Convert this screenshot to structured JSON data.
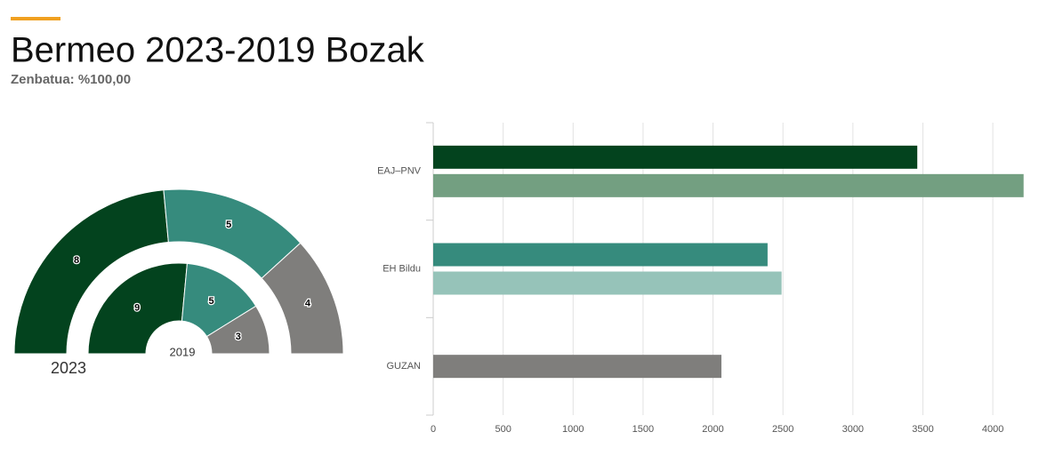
{
  "title": "Bermeo 2023-2019 Bozak",
  "subtitle": "Zenbatua: %100,00",
  "chart_data": [
    {
      "type": "semi-donut",
      "series": [
        {
          "name": "2023",
          "colors": [
            "#03431e",
            "#368b7d",
            "#7f7e7c"
          ],
          "values": [
            8,
            5,
            4
          ]
        },
        {
          "name": "2019",
          "colors": [
            "#03431e",
            "#368b7d",
            "#7f7e7c"
          ],
          "values": [
            9,
            5,
            3
          ]
        }
      ]
    },
    {
      "type": "hbar",
      "categories": [
        "EAJ–PNV",
        "EH Bildu",
        "GUZAN"
      ],
      "series": [
        {
          "colors": [
            "#03431e",
            "#368b7d",
            "#7f7e7c"
          ],
          "values": [
            3460,
            2390,
            2060
          ]
        },
        {
          "colors": [
            "#739f81",
            "#96c3b9",
            null
          ],
          "values": [
            4220,
            2490,
            null
          ]
        }
      ],
      "xlim": [
        0,
        4330
      ],
      "xticks": [
        0,
        500,
        1000,
        1500,
        2000,
        2500,
        3000,
        3500,
        4000
      ],
      "grid": true
    }
  ]
}
